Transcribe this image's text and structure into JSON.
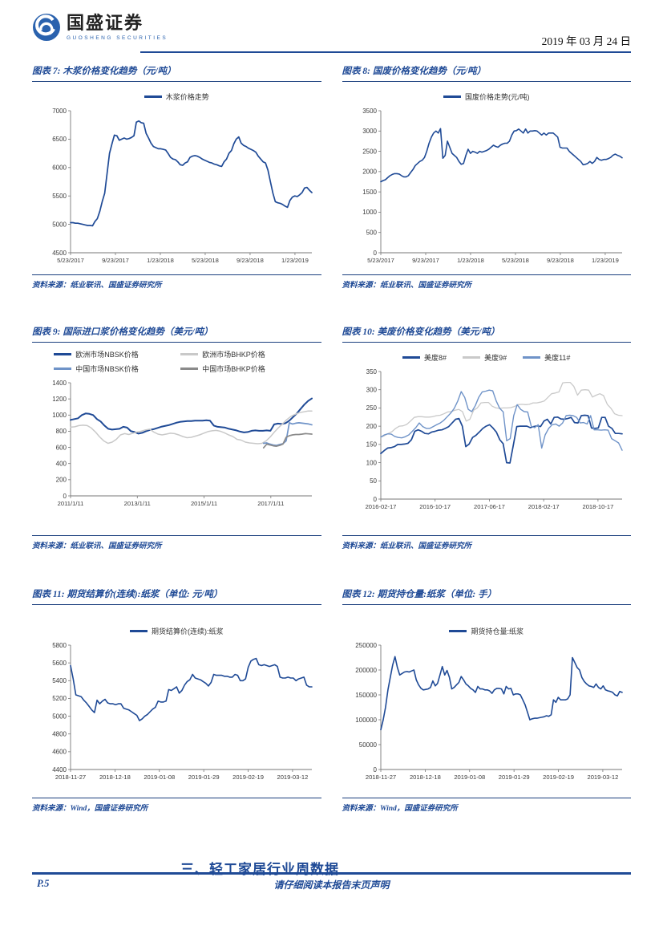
{
  "header": {
    "brand_cn": "国盛证券",
    "brand_en": "GUOSHENG SECURITIES",
    "date": "2019 年 03 月 24 日"
  },
  "figures": [
    {
      "title": "图表 7:  木浆价格变化趋势（元/吨）",
      "source": "资料来源：纸业联讯、国盛证券研究所"
    },
    {
      "title": "图表 8:  国废价格变化趋势（元/吨）",
      "source": "资料来源：纸业联讯、国盛证券研究所"
    },
    {
      "title": "图表 9:  国际进口浆价格变化趋势（美元/吨）",
      "source": "资料来源：纸业联讯、国盛证券研究所"
    },
    {
      "title": "图表 10:  美废价格变化趋势（美元/吨）",
      "source": "资料来源：纸业联讯、国盛证券研究所"
    },
    {
      "title": "图表 11:  期货结算价(连续):纸浆（单位: 元/吨）",
      "source": "资料来源：Wind，国盛证券研究所"
    },
    {
      "title": "图表 12:  期货持仓量:纸浆（单位: 手）",
      "source": "资料来源：Wind，国盛证券研究所"
    }
  ],
  "section_heading": "三、轻工家居行业周数据",
  "footer": {
    "page": "P.5",
    "disclaimer": "请仔细阅读本报告末页声明"
  },
  "colors": {
    "navy": "#1f4a96",
    "light_blue": "#6f93c8",
    "light_gray": "#c9c9c9",
    "mid_gray": "#8a8a8a"
  },
  "chart_data": [
    {
      "type": "line",
      "title": "木浆价格变化趋势（元/吨）",
      "x_labels": [
        "5/23/2017",
        "9/23/2017",
        "1/23/2018",
        "5/23/2018",
        "9/23/2018",
        "1/23/2019"
      ],
      "x_label_end_frac": 0.93,
      "ylim": [
        4500,
        7000
      ],
      "ystep": 500,
      "series": [
        {
          "name": "木浆价格走势",
          "color": "#1f4a96",
          "width": 1.7,
          "values": [
            5030,
            5030,
            5020,
            5020,
            5010,
            5000,
            4990,
            4980,
            4980,
            4975,
            5050,
            5100,
            5230,
            5400,
            5550,
            5900,
            6250,
            6420,
            6570,
            6560,
            6480,
            6500,
            6520,
            6500,
            6510,
            6530,
            6560,
            6800,
            6820,
            6790,
            6780,
            6600,
            6520,
            6430,
            6370,
            6350,
            6330,
            6330,
            6320,
            6310,
            6250,
            6180,
            6150,
            6140,
            6100,
            6050,
            6040,
            6080,
            6100,
            6180,
            6200,
            6210,
            6200,
            6180,
            6150,
            6130,
            6110,
            6090,
            6080,
            6060,
            6050,
            6030,
            6020,
            6100,
            6150,
            6250,
            6300,
            6420,
            6500,
            6540,
            6430,
            6390,
            6370,
            6340,
            6320,
            6300,
            6270,
            6200,
            6150,
            6100,
            6080,
            5950,
            5750,
            5550,
            5400,
            5380,
            5370,
            5350,
            5320,
            5300,
            5420,
            5480,
            5500,
            5490,
            5520,
            5560,
            5640,
            5650,
            5600,
            5560
          ]
        }
      ]
    },
    {
      "type": "line",
      "title": "国废价格变化趋势（元/吨）",
      "x_labels": [
        "5/23/2017",
        "9/23/2017",
        "1/23/2018",
        "5/23/2018",
        "9/23/2018",
        "1/23/2019"
      ],
      "x_label_end_frac": 0.93,
      "ylim": [
        0,
        3500
      ],
      "ystep": 500,
      "series": [
        {
          "name": "国废价格走势(元/吨)",
          "color": "#1f4a96",
          "width": 1.6,
          "values": [
            1750,
            1780,
            1800,
            1850,
            1900,
            1930,
            1950,
            1950,
            1940,
            1900,
            1870,
            1870,
            1900,
            1980,
            2050,
            2150,
            2200,
            2250,
            2280,
            2350,
            2500,
            2700,
            2850,
            2950,
            3000,
            2950,
            3060,
            2330,
            2400,
            2750,
            2600,
            2450,
            2400,
            2350,
            2250,
            2180,
            2200,
            2400,
            2550,
            2450,
            2500,
            2480,
            2450,
            2500,
            2480,
            2500,
            2520,
            2550,
            2600,
            2650,
            2620,
            2600,
            2650,
            2680,
            2700,
            2700,
            2750,
            2900,
            3000,
            3010,
            3050,
            3000,
            2950,
            3050,
            2950,
            3000,
            3000,
            3010,
            3000,
            2950,
            2900,
            2950,
            2900,
            2950,
            2950,
            2950,
            2900,
            2850,
            2600,
            2580,
            2580,
            2580,
            2500,
            2450,
            2400,
            2350,
            2300,
            2250,
            2170,
            2180,
            2200,
            2250,
            2200,
            2250,
            2350,
            2300,
            2280,
            2300,
            2300,
            2320,
            2350,
            2400,
            2430,
            2400,
            2380,
            2340
          ]
        }
      ]
    },
    {
      "type": "line",
      "title": "国际进口浆价格变化趋势（美元/吨）",
      "x_labels": [
        "2011/1/11",
        "2013/1/11",
        "2015/1/11",
        "2017/1/11"
      ],
      "x_label_end_frac": 0.83,
      "ylim": [
        0,
        1400
      ],
      "ystep": 200,
      "series": [
        {
          "name": "欧洲市场NBSK价格",
          "color": "#1f4a96",
          "width": 2.0,
          "values": [
            940,
            950,
            960,
            1000,
            1020,
            1015,
            1000,
            950,
            920,
            870,
            830,
            820,
            825,
            830,
            855,
            845,
            800,
            790,
            770,
            780,
            800,
            815,
            825,
            840,
            855,
            865,
            875,
            890,
            905,
            915,
            920,
            925,
            925,
            930,
            930,
            930,
            935,
            930,
            870,
            855,
            850,
            845,
            830,
            820,
            810,
            795,
            785,
            790,
            805,
            810,
            805,
            805,
            810,
            805,
            885,
            895,
            890,
            900,
            930,
            975,
            1020,
            1075,
            1130,
            1175,
            1205
          ]
        },
        {
          "name": "欧洲市场BHKP价格",
          "color": "#c9c9c9",
          "width": 1.5,
          "values": [
            850,
            855,
            870,
            875,
            870,
            840,
            790,
            730,
            680,
            650,
            665,
            700,
            755,
            770,
            760,
            775,
            790,
            800,
            815,
            825,
            790,
            765,
            755,
            765,
            775,
            770,
            755,
            735,
            720,
            725,
            740,
            755,
            775,
            795,
            805,
            810,
            800,
            780,
            755,
            735,
            700,
            690,
            665,
            655,
            650,
            645,
            650,
            680,
            730,
            790,
            845,
            895,
            945,
            985,
            1010,
            1030,
            1040,
            1050,
            1050
          ]
        },
        {
          "name": "中国市场NBSK价格",
          "color": "#6f93c8",
          "width": 1.7,
          "start_frac": 0.8,
          "values": [
            650,
            655,
            640,
            630,
            625,
            635,
            645,
            680,
            905,
            890,
            900,
            905,
            900,
            895,
            890,
            880
          ]
        },
        {
          "name": "中国市场BHKP价格",
          "color": "#8a8a8a",
          "width": 1.7,
          "start_frac": 0.8,
          "values": [
            595,
            640,
            630,
            620,
            615,
            625,
            640,
            725,
            745,
            755,
            760,
            760,
            765,
            770,
            768,
            765
          ]
        }
      ]
    },
    {
      "type": "line",
      "title": "美废价格变化趋势（美元/吨）",
      "x_labels": [
        "2016-02-17",
        "2016-10-17",
        "2017-06-17",
        "2018-02-17",
        "2018-10-17"
      ],
      "x_label_end_frac": 0.9,
      "ylim": [
        0,
        350
      ],
      "ystep": 50,
      "series": [
        {
          "name": "美废8#",
          "color": "#1f4a96",
          "width": 1.7,
          "values": [
            125,
            133,
            140,
            141,
            144,
            150,
            150,
            151,
            153,
            163,
            186,
            190,
            186,
            180,
            179,
            184,
            186,
            189,
            190,
            194,
            199,
            209,
            219,
            221,
            200,
            144,
            151,
            169,
            175,
            184,
            194,
            200,
            204,
            195,
            184,
            163,
            152,
            100,
            99,
            148,
            199,
            200,
            200,
            200,
            196,
            199,
            201,
            199,
            214,
            219,
            206,
            224,
            225,
            220,
            219,
            221,
            224,
            210,
            209,
            229,
            230,
            229,
            195,
            194,
            195,
            224,
            224,
            200,
            194,
            180,
            180,
            179
          ]
        },
        {
          "name": "美废9#",
          "color": "#c9c9c9",
          "width": 1.3,
          "values": [
            170,
            174,
            180,
            185,
            194,
            200,
            201,
            205,
            214,
            224,
            226,
            226,
            225,
            225,
            226,
            229,
            230,
            234,
            239,
            240,
            244,
            246,
            240,
            214,
            219,
            244,
            250,
            264,
            265,
            265,
            255,
            250,
            249,
            250,
            250,
            251,
            254,
            259,
            260,
            259,
            260,
            264,
            264,
            266,
            269,
            279,
            289,
            291,
            294,
            319,
            320,
            320,
            309,
            285,
            299,
            300,
            299,
            280,
            285,
            289,
            284,
            260,
            249,
            234,
            230,
            229
          ]
        },
        {
          "name": "美废11#",
          "color": "#6f93c8",
          "width": 1.4,
          "values": [
            170,
            176,
            179,
            178,
            172,
            169,
            168,
            171,
            176,
            186,
            196,
            209,
            199,
            194,
            194,
            199,
            204,
            209,
            216,
            226,
            236,
            249,
            269,
            295,
            279,
            246,
            240,
            256,
            279,
            294,
            296,
            299,
            297,
            269,
            249,
            239,
            160,
            166,
            229,
            259,
            246,
            240,
            239,
            200,
            196,
            204,
            140,
            176,
            194,
            204,
            206,
            200,
            209,
            229,
            230,
            229,
            224,
            209,
            210,
            206,
            229,
            190,
            190,
            189,
            190,
            189,
            166,
            160,
            154,
            134
          ]
        }
      ]
    },
    {
      "type": "line",
      "title": "期货结算价(连续):纸浆（单位: 元/吨）",
      "x_labels": [
        "2018-11-27",
        "2018-12-18",
        "2019-01-08",
        "2019-01-29",
        "2019-02-19",
        "2019-03-12"
      ],
      "x_label_end_frac": 0.92,
      "ylim": [
        4400,
        5800
      ],
      "ystep": 200,
      "series": [
        {
          "name": "期货结算价(连续):纸浆",
          "color": "#1f4a96",
          "width": 1.6,
          "values": [
            5570,
            5420,
            5240,
            5230,
            5220,
            5180,
            5150,
            5110,
            5070,
            5040,
            5180,
            5140,
            5170,
            5190,
            5150,
            5140,
            5140,
            5130,
            5140,
            5140,
            5090,
            5080,
            5070,
            5050,
            5030,
            5010,
            4950,
            4970,
            5000,
            5020,
            5050,
            5080,
            5100,
            5170,
            5160,
            5160,
            5170,
            5300,
            5290,
            5310,
            5330,
            5260,
            5290,
            5350,
            5390,
            5410,
            5470,
            5430,
            5420,
            5410,
            5390,
            5370,
            5340,
            5380,
            5470,
            5460,
            5460,
            5460,
            5450,
            5450,
            5440,
            5440,
            5470,
            5460,
            5400,
            5400,
            5420,
            5550,
            5620,
            5640,
            5650,
            5580,
            5570,
            5580,
            5570,
            5560,
            5570,
            5580,
            5560,
            5440,
            5430,
            5430,
            5440,
            5430,
            5430,
            5400,
            5420,
            5430,
            5440,
            5350,
            5330,
            5330
          ]
        }
      ]
    },
    {
      "type": "line",
      "title": "期货持仓量:纸浆（单位: 手）",
      "x_labels": [
        "2018-11-27",
        "2018-12-18",
        "2019-01-08",
        "2019-01-29",
        "2019-02-19",
        "2019-03-12"
      ],
      "x_label_end_frac": 0.92,
      "ylim": [
        0,
        250000
      ],
      "ystep": 50000,
      "series": [
        {
          "name": "期货持仓量:纸浆",
          "color": "#1f4a96",
          "width": 1.6,
          "values": [
            80000,
            100000,
            125000,
            160000,
            185000,
            210000,
            227000,
            205000,
            190000,
            193000,
            196000,
            197000,
            196000,
            198000,
            200000,
            180000,
            170000,
            163000,
            160000,
            161000,
            162000,
            165000,
            178000,
            168000,
            173000,
            190000,
            207000,
            190000,
            199000,
            185000,
            162000,
            165000,
            170000,
            175000,
            187000,
            180000,
            172000,
            168000,
            163000,
            160000,
            155000,
            167000,
            162000,
            162000,
            160000,
            160000,
            158000,
            153000,
            160000,
            163000,
            163000,
            162000,
            152000,
            167000,
            162000,
            163000,
            150000,
            152000,
            152000,
            150000,
            140000,
            130000,
            115000,
            100000,
            102000,
            103000,
            103000,
            104000,
            105000,
            106000,
            108000,
            107000,
            110000,
            140000,
            135000,
            145000,
            140000,
            140000,
            140000,
            142000,
            150000,
            225000,
            215000,
            205000,
            200000,
            185000,
            177000,
            172000,
            168000,
            167000,
            165000,
            172000,
            165000,
            162000,
            168000,
            160000,
            158000,
            157000,
            155000,
            150000,
            148000,
            157000,
            155000
          ]
        }
      ]
    }
  ]
}
